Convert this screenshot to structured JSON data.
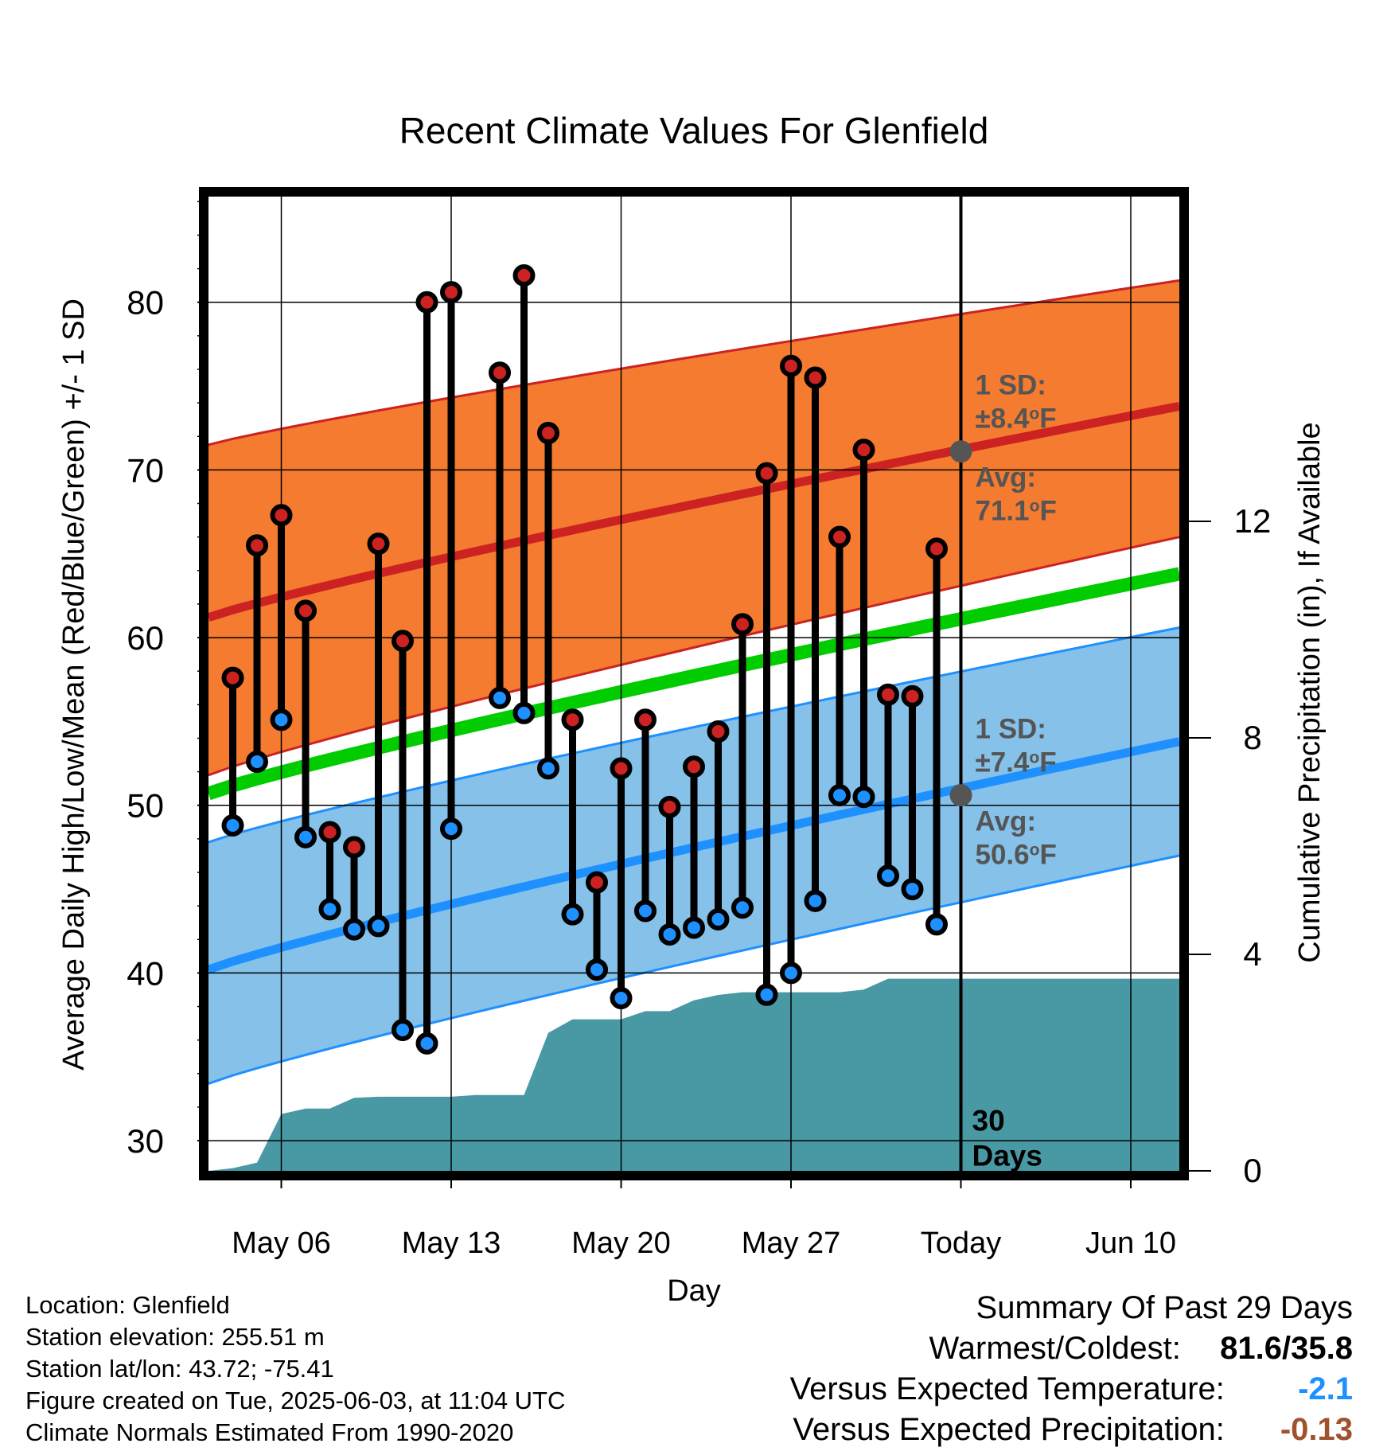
{
  "chart_data": {
    "type": "line",
    "title": "Recent Climate Values For Glenfield",
    "xlabel": "Day",
    "ylabel": "Average Daily High/Low/Mean (Red/Blue/Green) +/- 1 SD",
    "y2label": "Cumulative Precipitation (in), If Available",
    "ylim": [
      28.2,
      86.3
    ],
    "y2lim": [
      0,
      18
    ],
    "x_range_days": [
      "2025-05-03",
      "2025-06-12"
    ],
    "x_ticks": [
      {
        "date": "2025-05-06",
        "label": "May 06"
      },
      {
        "date": "2025-05-13",
        "label": "May 13"
      },
      {
        "date": "2025-05-20",
        "label": "May 20"
      },
      {
        "date": "2025-05-27",
        "label": "May 27"
      },
      {
        "date": "2025-06-03",
        "label": "Today"
      },
      {
        "date": "2025-06-10",
        "label": "Jun 10"
      }
    ],
    "y_ticks": [
      30,
      40,
      50,
      60,
      70,
      80
    ],
    "y2_ticks": [
      0,
      4,
      8,
      12
    ],
    "grid": true,
    "today": "2025-06-03",
    "today_label": "30\nDays",
    "normals": {
      "high_avg": {
        "start": 61.2,
        "end": 73.8,
        "start_date": "2025-05-03",
        "end_date": "2025-06-12"
      },
      "high_sd_upper": {
        "start": 71.5,
        "end": 81.3
      },
      "high_sd_lower": {
        "start": 51.8,
        "end": 66.0
      },
      "low_avg": {
        "start": 40.2,
        "end": 53.8
      },
      "low_sd_upper": {
        "start": 47.8,
        "end": 60.6
      },
      "low_sd_lower": {
        "start": 33.4,
        "end": 47.0
      },
      "mean_avg": {
        "start": 50.7,
        "end": 63.8
      }
    },
    "annotations": {
      "high_sd": "1 SD:\n±8.4°F",
      "high_avg": "Avg:\n71.1°F",
      "high_avg_today": 71.1,
      "low_sd": "1 SD:\n±7.4°F",
      "low_avg": "Avg:\n50.6°F",
      "low_avg_today": 50.6
    },
    "series": [
      {
        "name": "High",
        "dates": [
          "2025-05-04",
          "2025-05-05",
          "2025-05-06",
          "2025-05-07",
          "2025-05-08",
          "2025-05-09",
          "2025-05-10",
          "2025-05-11",
          "2025-05-12",
          "2025-05-13",
          "2025-05-15",
          "2025-05-16",
          "2025-05-17",
          "2025-05-18",
          "2025-05-19",
          "2025-05-20",
          "2025-05-21",
          "2025-05-22",
          "2025-05-23",
          "2025-05-24",
          "2025-05-25",
          "2025-05-26",
          "2025-05-27",
          "2025-05-28",
          "2025-05-29",
          "2025-05-30",
          "2025-05-31",
          "2025-06-01",
          "2025-06-02"
        ],
        "values": [
          57.6,
          65.5,
          67.3,
          61.6,
          48.4,
          47.5,
          65.6,
          59.8,
          80.0,
          80.6,
          75.8,
          81.6,
          72.2,
          55.1,
          45.4,
          52.2,
          55.1,
          49.9,
          52.3,
          54.4,
          60.8,
          69.8,
          76.2,
          75.5,
          66.0,
          71.2,
          56.6,
          56.5,
          65.3
        ]
      },
      {
        "name": "Low",
        "dates": [
          "2025-05-04",
          "2025-05-05",
          "2025-05-06",
          "2025-05-07",
          "2025-05-08",
          "2025-05-09",
          "2025-05-10",
          "2025-05-11",
          "2025-05-12",
          "2025-05-13",
          "2025-05-15",
          "2025-05-16",
          "2025-05-17",
          "2025-05-18",
          "2025-05-19",
          "2025-05-20",
          "2025-05-21",
          "2025-05-22",
          "2025-05-23",
          "2025-05-24",
          "2025-05-25",
          "2025-05-26",
          "2025-05-27",
          "2025-05-28",
          "2025-05-29",
          "2025-05-30",
          "2025-05-31",
          "2025-06-01",
          "2025-06-02"
        ],
        "values": [
          48.8,
          52.6,
          55.1,
          48.1,
          43.8,
          42.6,
          42.8,
          36.6,
          35.8,
          48.6,
          56.4,
          55.5,
          52.2,
          43.5,
          40.2,
          38.5,
          43.7,
          42.3,
          42.7,
          43.2,
          43.9,
          38.7,
          40.0,
          44.3,
          50.6,
          50.5,
          45.8,
          45.0,
          42.9
        ]
      },
      {
        "name": "Cumulative Precipitation",
        "axis": "y2",
        "dates": [
          "2025-05-03",
          "2025-05-04",
          "2025-05-05",
          "2025-05-06",
          "2025-05-07",
          "2025-05-08",
          "2025-05-09",
          "2025-05-10",
          "2025-05-12",
          "2025-05-13",
          "2025-05-14",
          "2025-05-15",
          "2025-05-16",
          "2025-05-17",
          "2025-05-18",
          "2025-05-19",
          "2025-05-20",
          "2025-05-21",
          "2025-05-22",
          "2025-05-23",
          "2025-05-24",
          "2025-05-25",
          "2025-05-26",
          "2025-05-27",
          "2025-05-28",
          "2025-05-29",
          "2025-05-30",
          "2025-05-31",
          "2025-06-01",
          "2025-06-12"
        ],
        "values": [
          0.0,
          0.05,
          0.15,
          1.05,
          1.15,
          1.15,
          1.35,
          1.37,
          1.37,
          1.37,
          1.4,
          1.4,
          1.4,
          2.55,
          2.8,
          2.8,
          2.8,
          2.95,
          2.95,
          3.15,
          3.25,
          3.3,
          3.3,
          3.3,
          3.3,
          3.3,
          3.35,
          3.55,
          3.55,
          3.55
        ]
      }
    ]
  },
  "colors": {
    "high": "#cc2222",
    "high_band": "#f47b2f",
    "low": "#1e90ff",
    "low_band": "#85c1e9",
    "mean": "#00cc00",
    "precip": "#4899a3",
    "annotation": "#555555",
    "temp_delta": "#1e90ff",
    "precip_delta": "#a0522d"
  },
  "info": {
    "location": "Location: Glenfield",
    "elevation": "Station elevation: 255.51 m",
    "latlon": "Station lat/lon: 43.72; -75.41",
    "created": "Figure created on Tue, 2025-06-03, at 11:04 UTC",
    "normals": "Climate Normals Estimated From 1990-2020"
  },
  "summary": {
    "title": "Summary Of Past 29 Days",
    "warm_cold_label": "Warmest/Coldest:",
    "warm_cold_value": "81.6/35.8",
    "temp_label": "Versus Expected Temperature:",
    "temp_value": "-2.1",
    "precip_label": "Versus Expected Precipitation:",
    "precip_value": "-0.13"
  }
}
